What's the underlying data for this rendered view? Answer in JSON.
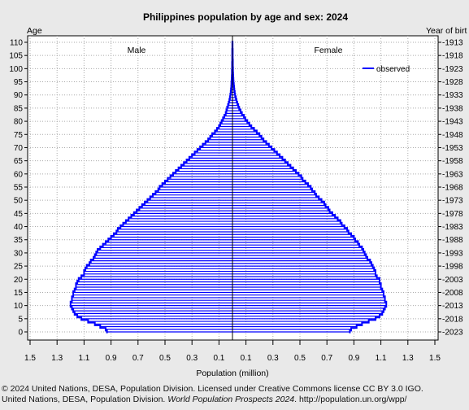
{
  "chart_data": {
    "type": "bar",
    "subtype": "population-pyramid",
    "title": "Philippines population by age and sex: 2024",
    "left_axis_title": "Age",
    "right_axis_title": "Year of birt",
    "xlabel": "Population (million)",
    "male_label": "Male",
    "female_label": "Female",
    "legend": {
      "label": "observed",
      "position": "top-right"
    },
    "x_ticks": [
      "1.5",
      "1.3",
      "1.1",
      "0.9",
      "0.7",
      "0.5",
      "0.3",
      "0.1",
      "0.1",
      "0.3",
      "0.5",
      "0.7",
      "0.9",
      "1.1",
      "1.3",
      "1.5"
    ],
    "x_range_per_side": [
      0,
      1.5
    ],
    "age_ticks": [
      "0",
      "5",
      "10",
      "15",
      "20",
      "25",
      "30",
      "35",
      "40",
      "45",
      "50",
      "55",
      "60",
      "65",
      "70",
      "75",
      "80",
      "85",
      "90",
      "95",
      "100",
      "105",
      "110"
    ],
    "year_ticks": [
      "2023",
      "2018",
      "2013",
      "2008",
      "2003",
      "1998",
      "1993",
      "1988",
      "1983",
      "1978",
      "1973",
      "1968",
      "1963",
      "1958",
      "1953",
      "1948",
      "1943",
      "1938",
      "1933",
      "1928",
      "1923",
      "1918",
      "1913"
    ],
    "age_range": [
      0,
      110
    ],
    "grid": true,
    "bar_color": "#0000ff",
    "ages": [
      0,
      1,
      2,
      3,
      4,
      5,
      6,
      7,
      8,
      9,
      10,
      11,
      12,
      13,
      14,
      15,
      16,
      17,
      18,
      19,
      20,
      21,
      22,
      23,
      24,
      25,
      26,
      27,
      28,
      29,
      30,
      31,
      32,
      33,
      34,
      35,
      36,
      37,
      38,
      39,
      40,
      41,
      42,
      43,
      44,
      45,
      46,
      47,
      48,
      49,
      50,
      51,
      52,
      53,
      54,
      55,
      56,
      57,
      58,
      59,
      60,
      61,
      62,
      63,
      64,
      65,
      66,
      67,
      68,
      69,
      70,
      71,
      72,
      73,
      74,
      75,
      76,
      77,
      78,
      79,
      80,
      81,
      82,
      83,
      84,
      85,
      86,
      87,
      88,
      89,
      90,
      91,
      92,
      93,
      94,
      95,
      96,
      97,
      98,
      99,
      100,
      101,
      102,
      103,
      104,
      105,
      106,
      107,
      108,
      109,
      110
    ],
    "series": [
      {
        "name": "Male",
        "values": [
          0.93,
          0.94,
          0.98,
          1.02,
          1.07,
          1.12,
          1.15,
          1.17,
          1.18,
          1.19,
          1.2,
          1.2,
          1.19,
          1.19,
          1.18,
          1.18,
          1.17,
          1.16,
          1.16,
          1.15,
          1.14,
          1.12,
          1.1,
          1.1,
          1.09,
          1.08,
          1.06,
          1.05,
          1.03,
          1.02,
          1.01,
          1.0,
          0.98,
          0.96,
          0.94,
          0.92,
          0.9,
          0.88,
          0.86,
          0.85,
          0.83,
          0.81,
          0.79,
          0.77,
          0.75,
          0.73,
          0.71,
          0.69,
          0.67,
          0.65,
          0.63,
          0.61,
          0.59,
          0.57,
          0.55,
          0.54,
          0.52,
          0.5,
          0.48,
          0.46,
          0.44,
          0.42,
          0.4,
          0.38,
          0.36,
          0.34,
          0.32,
          0.3,
          0.28,
          0.26,
          0.24,
          0.22,
          0.2,
          0.18,
          0.165,
          0.15,
          0.13,
          0.115,
          0.1,
          0.09,
          0.08,
          0.07,
          0.06,
          0.05,
          0.045,
          0.04,
          0.033,
          0.028,
          0.023,
          0.019,
          0.016,
          0.013,
          0.011,
          0.009,
          0.008,
          0.007,
          0.006,
          0.005,
          0.004,
          0.004,
          0.003,
          0.003,
          0.003,
          0.002,
          0.002,
          0.002,
          0.002,
          0.002,
          0.001,
          0.001,
          0.001
        ]
      },
      {
        "name": "Female",
        "values": [
          0.87,
          0.88,
          0.92,
          0.96,
          1.01,
          1.06,
          1.09,
          1.11,
          1.12,
          1.13,
          1.14,
          1.14,
          1.13,
          1.13,
          1.12,
          1.12,
          1.11,
          1.1,
          1.1,
          1.09,
          1.09,
          1.07,
          1.06,
          1.06,
          1.05,
          1.04,
          1.03,
          1.02,
          1.0,
          0.99,
          0.98,
          0.97,
          0.96,
          0.94,
          0.93,
          0.91,
          0.9,
          0.88,
          0.86,
          0.85,
          0.83,
          0.81,
          0.8,
          0.78,
          0.76,
          0.74,
          0.72,
          0.71,
          0.69,
          0.68,
          0.66,
          0.64,
          0.62,
          0.61,
          0.59,
          0.58,
          0.56,
          0.54,
          0.52,
          0.51,
          0.49,
          0.47,
          0.45,
          0.43,
          0.41,
          0.39,
          0.37,
          0.35,
          0.33,
          0.31,
          0.29,
          0.27,
          0.25,
          0.23,
          0.215,
          0.2,
          0.18,
          0.16,
          0.14,
          0.125,
          0.11,
          0.095,
          0.085,
          0.07,
          0.06,
          0.05,
          0.043,
          0.036,
          0.03,
          0.025,
          0.02,
          0.017,
          0.014,
          0.012,
          0.01,
          0.008,
          0.007,
          0.006,
          0.005,
          0.004,
          0.004,
          0.003,
          0.003,
          0.003,
          0.002,
          0.002,
          0.002,
          0.002,
          0.001,
          0.001,
          0.001
        ]
      }
    ]
  },
  "credits": {
    "line1": "© 2024 United Nations, DESA, Population Division. Licensed under Creative Commons license CC BY 3.0 IGO.",
    "line2_prefix": "United Nations, DESA, Population Division. ",
    "line2_italic": "World Population Prospects 2024",
    "line2_suffix": ". http://population.un.org/wpp/"
  }
}
